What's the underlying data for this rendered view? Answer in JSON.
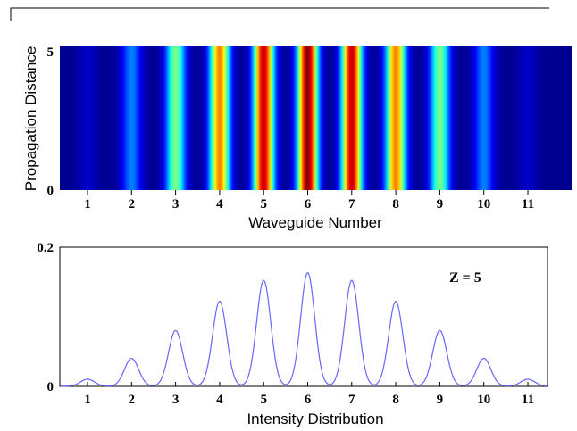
{
  "chart_data": [
    {
      "type": "heatmap",
      "xlabel": "Waveguide Number",
      "ylabel": "Propagation Distance",
      "x_ticks": [
        "1",
        "2",
        "3",
        "4",
        "5",
        "6",
        "7",
        "8",
        "9",
        "10",
        "11"
      ],
      "y_ticks": [
        "0",
        "5"
      ],
      "ylim": [
        0,
        5
      ],
      "colormap": [
        "#00008f",
        "#0000ff",
        "#00ffff",
        "#ffff00",
        "#ff0000",
        "#800000"
      ],
      "column_intensity": {
        "waveguides": [
          1,
          2,
          3,
          4,
          5,
          6,
          7,
          8,
          9,
          10,
          11
        ],
        "values": [
          0.01,
          0.04,
          0.08,
          0.122,
          0.152,
          0.163,
          0.152,
          0.122,
          0.08,
          0.04,
          0.01
        ]
      }
    },
    {
      "type": "line",
      "xlabel": "Intensity Distribution",
      "ylabel": "",
      "x_ticks": [
        "1",
        "2",
        "3",
        "4",
        "5",
        "6",
        "7",
        "8",
        "9",
        "10",
        "11"
      ],
      "y_ticks": [
        "0",
        "0.2"
      ],
      "ylim": [
        0,
        0.2
      ],
      "xlim": [
        0.3,
        11.95
      ],
      "annotation": "Z = 5",
      "line_color": "#6666ff",
      "peaks": {
        "x": [
          1,
          2,
          3,
          4,
          5,
          6,
          7,
          8,
          9,
          10,
          11
        ],
        "y": [
          0.01,
          0.04,
          0.08,
          0.122,
          0.152,
          0.163,
          0.152,
          0.122,
          0.08,
          0.04,
          0.01
        ]
      }
    }
  ]
}
